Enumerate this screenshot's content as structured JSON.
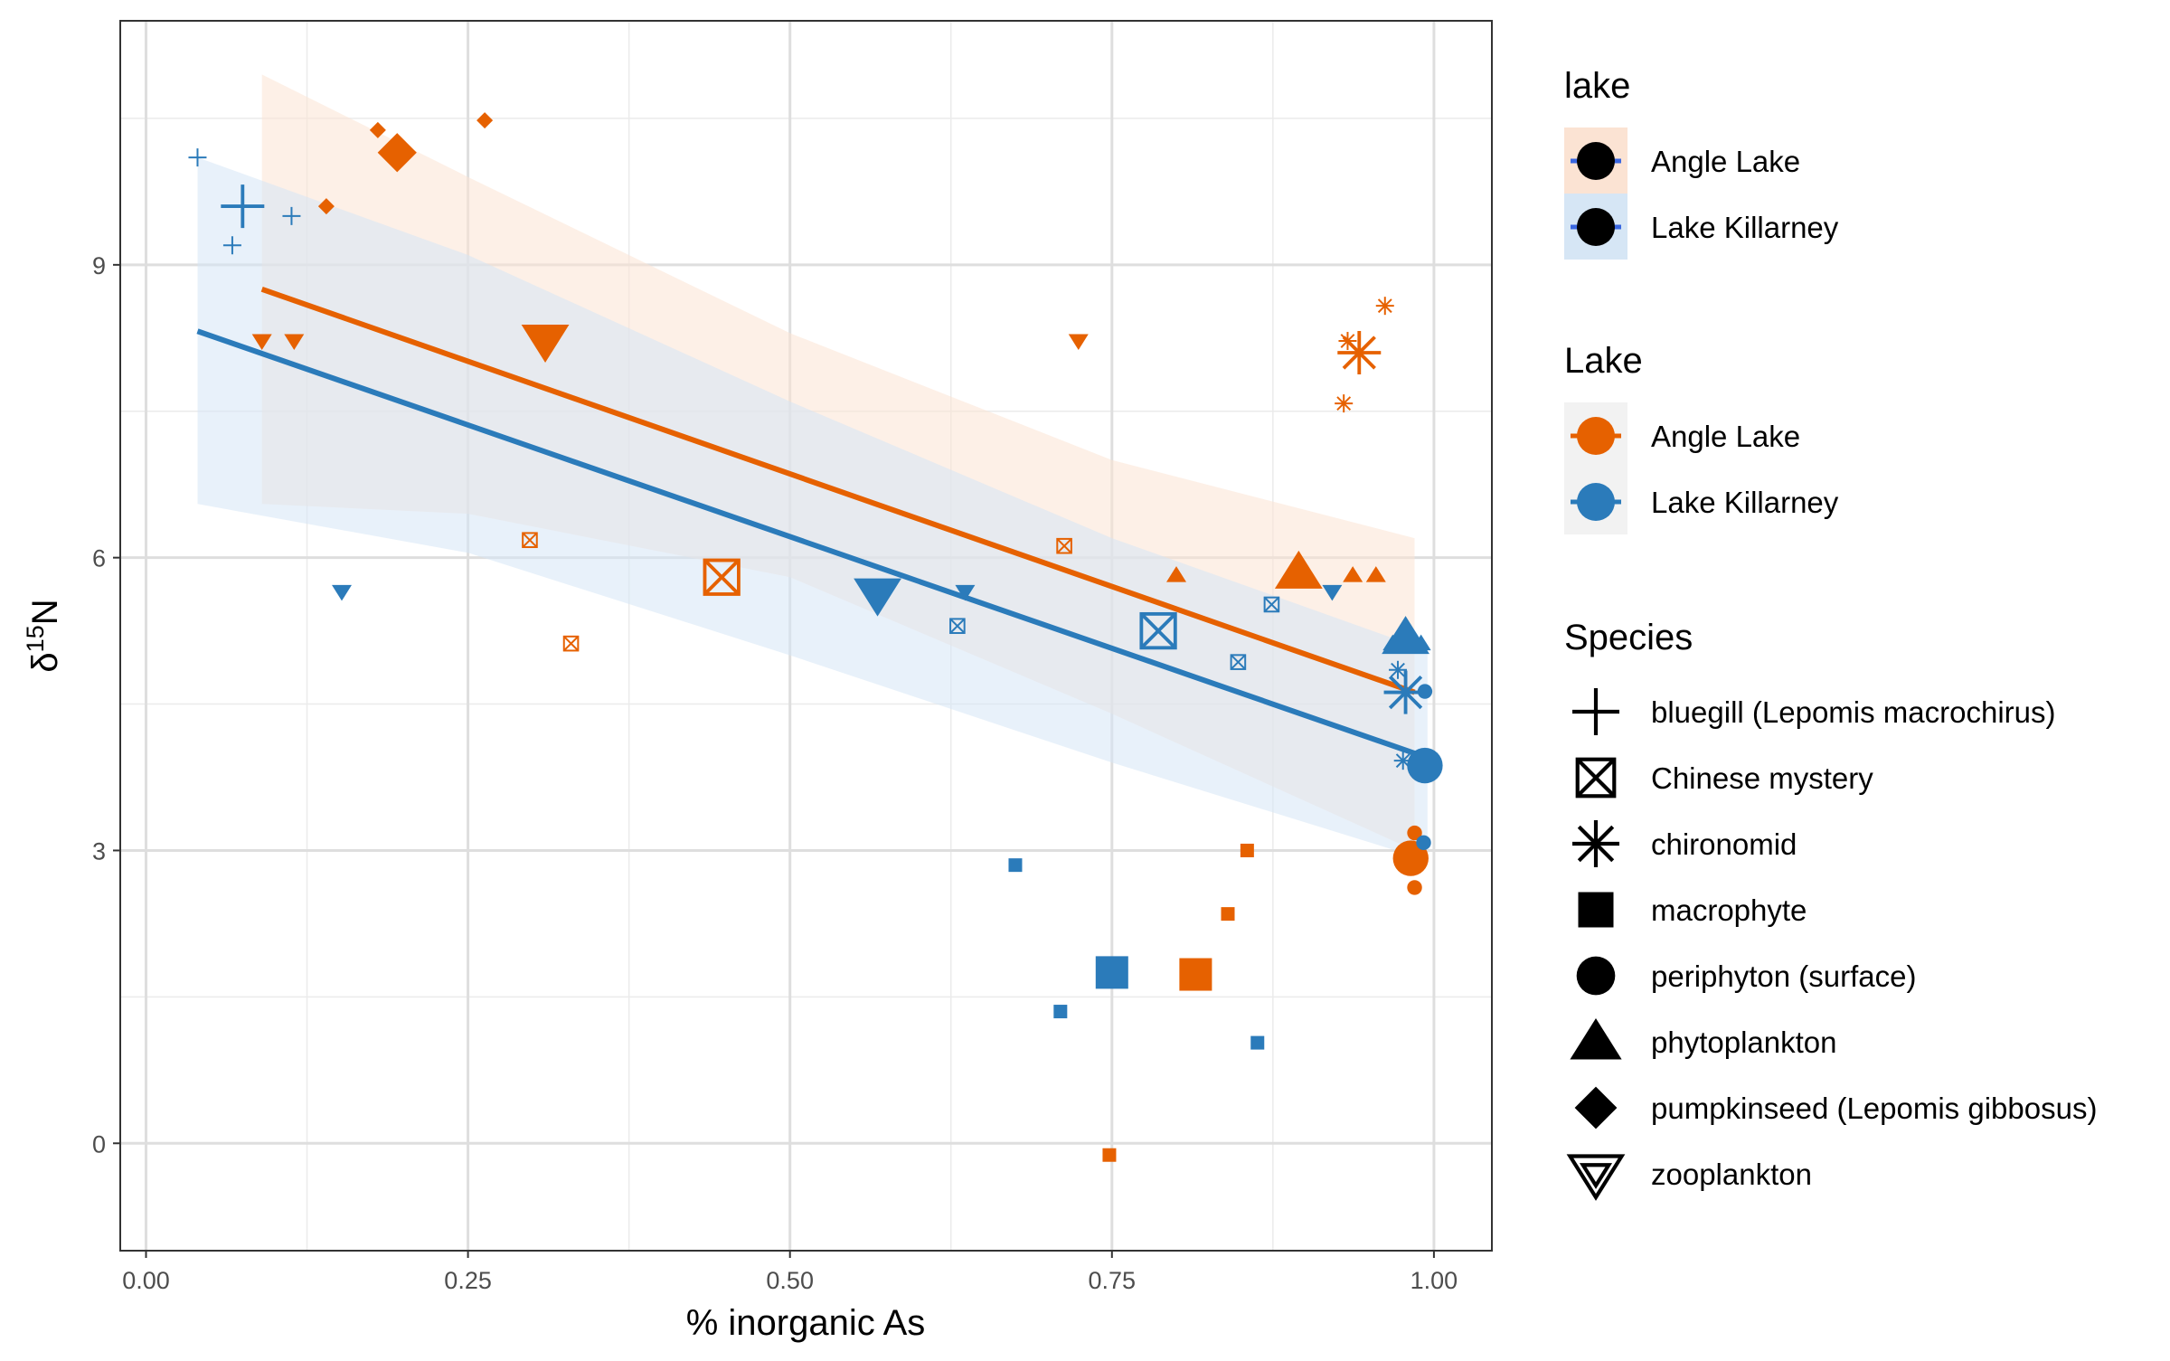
{
  "chart_data": {
    "type": "scatter",
    "xlabel": "% inorganic As",
    "ylabel": "δ15N",
    "ylabel_main": "δ",
    "ylabel_sup": "15",
    "ylabel_tail": "N",
    "xlim": [
      -0.02,
      1.045
    ],
    "ylim": [
      -1.1,
      11.5
    ],
    "x_ticks": [
      0.0,
      0.25,
      0.5,
      0.75,
      1.0
    ],
    "x_tick_labels": [
      "0.00",
      "0.25",
      "0.50",
      "0.75",
      "1.00"
    ],
    "y_ticks": [
      0,
      3,
      6,
      9
    ],
    "y_tick_labels": [
      "0",
      "3",
      "6",
      "9"
    ],
    "grid": true,
    "legend_position": "right",
    "colors": {
      "Angle Lake": "#e66100",
      "Lake Killarney": "#2b7bba"
    },
    "ribbon_colors": {
      "Angle Lake": "#fbe3d3",
      "Lake Killarney": "#d6e6f5"
    },
    "legend_ribbon_line": "#3a67e0",
    "legends": [
      {
        "title": "lake",
        "kind": "ribbon",
        "entries": [
          "Angle Lake",
          "Lake Killarney"
        ]
      },
      {
        "title": "Lake",
        "kind": "color",
        "entries": [
          "Angle Lake",
          "Lake Killarney"
        ]
      },
      {
        "title": "Species",
        "kind": "shape",
        "entries": [
          {
            "label": "bluegill (Lepomis macrochirus)",
            "shape": "plus"
          },
          {
            "label": "Chinese mystery",
            "shape": "square-x"
          },
          {
            "label": "chironomid",
            "shape": "asterisk"
          },
          {
            "label": "macrophyte",
            "shape": "square"
          },
          {
            "label": "periphyton (surface)",
            "shape": "circle"
          },
          {
            "label": "phytoplankton",
            "shape": "triangle"
          },
          {
            "label": "pumpkinseed (Lepomis gibbosus)",
            "shape": "diamond"
          },
          {
            "label": "zooplankton",
            "shape": "triangle-down-open"
          }
        ]
      }
    ],
    "regression": [
      {
        "lake": "Angle Lake",
        "x": [
          0.09,
          0.985
        ],
        "y": [
          8.75,
          4.62
        ],
        "band": {
          "x": [
            0.09,
            0.25,
            0.5,
            0.75,
            0.985
          ],
          "upper": [
            10.95,
            9.9,
            8.3,
            7.0,
            6.2
          ],
          "lower": [
            6.55,
            6.45,
            5.8,
            4.4,
            3.0
          ]
        }
      },
      {
        "lake": "Lake Killarney",
        "x": [
          0.04,
          0.995
        ],
        "y": [
          8.32,
          3.95
        ],
        "band": {
          "x": [
            0.04,
            0.25,
            0.5,
            0.75,
            0.995
          ],
          "upper": [
            10.1,
            9.1,
            7.6,
            6.2,
            5.05
          ],
          "lower": [
            6.55,
            6.05,
            5.0,
            3.9,
            2.9
          ]
        }
      }
    ],
    "series": [
      {
        "name": "Angle Lake",
        "points": [
          {
            "x": 0.18,
            "y": 10.38,
            "species": "pumpkinseed (Lepomis gibbosus)",
            "size": "small"
          },
          {
            "x": 0.263,
            "y": 10.48,
            "species": "pumpkinseed (Lepomis gibbosus)",
            "size": "small"
          },
          {
            "x": 0.14,
            "y": 9.6,
            "species": "pumpkinseed (Lepomis gibbosus)",
            "size": "small"
          },
          {
            "x": 0.195,
            "y": 10.15,
            "species": "pumpkinseed (Lepomis gibbosus)",
            "size": "large"
          },
          {
            "x": 0.09,
            "y": 8.22,
            "species": "zooplankton",
            "size": "small"
          },
          {
            "x": 0.115,
            "y": 8.22,
            "species": "zooplankton",
            "size": "small"
          },
          {
            "x": 0.31,
            "y": 8.22,
            "species": "zooplankton",
            "size": "large"
          },
          {
            "x": 0.724,
            "y": 8.22,
            "species": "zooplankton",
            "size": "small"
          },
          {
            "x": 0.298,
            "y": 6.18,
            "species": "Chinese mystery",
            "size": "small"
          },
          {
            "x": 0.33,
            "y": 5.12,
            "species": "Chinese mystery",
            "size": "small"
          },
          {
            "x": 0.447,
            "y": 5.8,
            "species": "Chinese mystery",
            "size": "large"
          },
          {
            "x": 0.713,
            "y": 6.12,
            "species": "Chinese mystery",
            "size": "small"
          },
          {
            "x": 0.8,
            "y": 5.82,
            "species": "phytoplankton",
            "size": "small"
          },
          {
            "x": 0.895,
            "y": 5.85,
            "species": "phytoplankton",
            "size": "large"
          },
          {
            "x": 0.937,
            "y": 5.82,
            "species": "phytoplankton",
            "size": "small"
          },
          {
            "x": 0.955,
            "y": 5.82,
            "species": "phytoplankton",
            "size": "small"
          },
          {
            "x": 0.962,
            "y": 8.58,
            "species": "chironomid",
            "size": "small"
          },
          {
            "x": 0.933,
            "y": 8.22,
            "species": "chironomid",
            "size": "small"
          },
          {
            "x": 0.942,
            "y": 8.1,
            "species": "chironomid",
            "size": "large"
          },
          {
            "x": 0.93,
            "y": 7.58,
            "species": "chironomid",
            "size": "small"
          },
          {
            "x": 0.855,
            "y": 3.0,
            "species": "macrophyte",
            "size": "small"
          },
          {
            "x": 0.84,
            "y": 2.35,
            "species": "macrophyte",
            "size": "small"
          },
          {
            "x": 0.815,
            "y": 1.73,
            "species": "macrophyte",
            "size": "large"
          },
          {
            "x": 0.748,
            "y": -0.12,
            "species": "macrophyte",
            "size": "small"
          },
          {
            "x": 0.985,
            "y": 3.18,
            "species": "periphyton (surface)",
            "size": "small"
          },
          {
            "x": 0.982,
            "y": 2.92,
            "species": "periphyton (surface)",
            "size": "large"
          },
          {
            "x": 0.985,
            "y": 2.62,
            "species": "periphyton (surface)",
            "size": "small"
          }
        ]
      },
      {
        "name": "Lake Killarney",
        "points": [
          {
            "x": 0.04,
            "y": 10.1,
            "species": "bluegill (Lepomis macrochirus)",
            "size": "small"
          },
          {
            "x": 0.075,
            "y": 9.6,
            "species": "bluegill (Lepomis macrochirus)",
            "size": "large"
          },
          {
            "x": 0.067,
            "y": 9.2,
            "species": "bluegill (Lepomis macrochirus)",
            "size": "small"
          },
          {
            "x": 0.113,
            "y": 9.5,
            "species": "bluegill (Lepomis macrochirus)",
            "size": "small"
          },
          {
            "x": 0.152,
            "y": 5.65,
            "species": "zooplankton",
            "size": "small"
          },
          {
            "x": 0.568,
            "y": 5.62,
            "species": "zooplankton",
            "size": "large"
          },
          {
            "x": 0.636,
            "y": 5.65,
            "species": "zooplankton",
            "size": "small"
          },
          {
            "x": 0.921,
            "y": 5.65,
            "species": "zooplankton",
            "size": "small"
          },
          {
            "x": 0.63,
            "y": 5.3,
            "species": "Chinese mystery",
            "size": "small"
          },
          {
            "x": 0.786,
            "y": 5.25,
            "species": "Chinese mystery",
            "size": "large"
          },
          {
            "x": 0.848,
            "y": 4.93,
            "species": "Chinese mystery",
            "size": "small"
          },
          {
            "x": 0.874,
            "y": 5.52,
            "species": "Chinese mystery",
            "size": "small"
          },
          {
            "x": 0.968,
            "y": 5.12,
            "species": "phytoplankton",
            "size": "small"
          },
          {
            "x": 0.978,
            "y": 5.18,
            "species": "phytoplankton",
            "size": "large"
          },
          {
            "x": 0.99,
            "y": 5.12,
            "species": "phytoplankton",
            "size": "small"
          },
          {
            "x": 0.972,
            "y": 4.85,
            "species": "chironomid",
            "size": "small"
          },
          {
            "x": 0.978,
            "y": 4.62,
            "species": "chironomid",
            "size": "large"
          },
          {
            "x": 0.976,
            "y": 3.92,
            "species": "chironomid",
            "size": "small"
          },
          {
            "x": 0.675,
            "y": 2.85,
            "species": "macrophyte",
            "size": "small"
          },
          {
            "x": 0.75,
            "y": 1.75,
            "species": "macrophyte",
            "size": "large"
          },
          {
            "x": 0.71,
            "y": 1.35,
            "species": "macrophyte",
            "size": "small"
          },
          {
            "x": 0.863,
            "y": 1.03,
            "species": "macrophyte",
            "size": "small"
          },
          {
            "x": 0.993,
            "y": 4.63,
            "species": "periphyton (surface)",
            "size": "small"
          },
          {
            "x": 0.993,
            "y": 3.87,
            "species": "periphyton (surface)",
            "size": "large"
          },
          {
            "x": 0.992,
            "y": 3.08,
            "species": "periphyton (surface)",
            "size": "small"
          }
        ]
      }
    ]
  }
}
